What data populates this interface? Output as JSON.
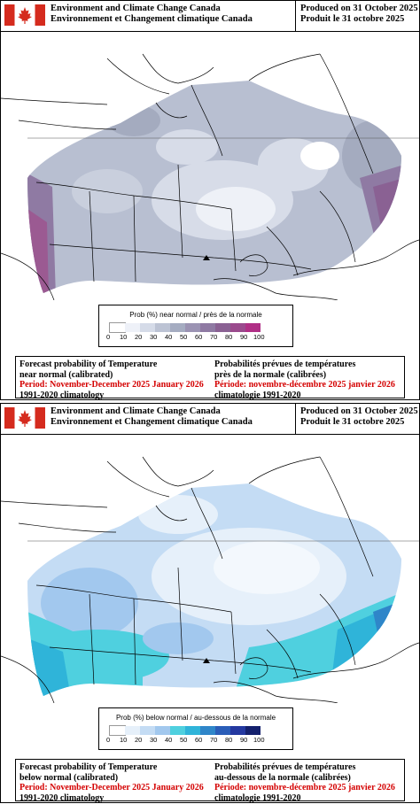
{
  "panels": [
    {
      "agency_en": "Environment and Climate Change Canada",
      "agency_fr": "Environnement et Changement climatique Canada",
      "produced_en": "Produced on 31 October 2025",
      "produced_fr": "Produit le 31 octobre 2025",
      "legend_title": "Prob (%) near normal / près de la normale",
      "legend_ticks": [
        "0",
        "10",
        "20",
        "30",
        "40",
        "50",
        "60",
        "70",
        "80",
        "90",
        "100"
      ],
      "legend_colors": [
        "#ffffff",
        "#eef1f8",
        "#d5dbe8",
        "#bcc3d4",
        "#a5acc1",
        "#9b93b3",
        "#8f7aa3",
        "#8a6193",
        "#9a4a8d",
        "#b02f86"
      ],
      "en_line1": "Forecast probability of Temperature",
      "en_line2": "near normal (calibrated)",
      "en_period": "Period: November-December 2025 January 2026",
      "en_climatology": "1991-2020 climatology",
      "fr_line1": "Probabilités prévues de températures",
      "fr_line2": "près de la normale (calibrées)",
      "fr_period": "Période: novembre-décembre 2025 janvier 2026",
      "fr_climatology": "climatologie 1991-2020"
    },
    {
      "agency_en": "Environment and Climate Change Canada",
      "agency_fr": "Environnement et Changement climatique Canada",
      "produced_en": "Produced on 31 October 2025",
      "produced_fr": "Produit le 31 octobre 2025",
      "legend_title": "Prob (%) below normal / au-dessous de la normale",
      "legend_ticks": [
        "0",
        "10",
        "20",
        "30",
        "40",
        "50",
        "60",
        "70",
        "80",
        "90",
        "100"
      ],
      "legend_colors": [
        "#ffffff",
        "#e6f0fa",
        "#c4dcf4",
        "#a2c8ee",
        "#4fd0df",
        "#2fb4d9",
        "#2f86c9",
        "#2a5db8",
        "#2438a0",
        "#14206d"
      ],
      "en_line1": "Forecast probability of Temperature",
      "en_line2": "below normal (calibrated)",
      "en_period": "Period: November-December 2025 January 2026",
      "en_climatology": "1991-2020 climatology",
      "fr_line1": "Probabilités prévues de températures",
      "fr_line2": "au-dessous de la normale (calibrées)",
      "fr_period": "Période: novembre-décembre 2025 janvier 2026",
      "fr_climatology": "climatologie 1991-2020"
    }
  ]
}
